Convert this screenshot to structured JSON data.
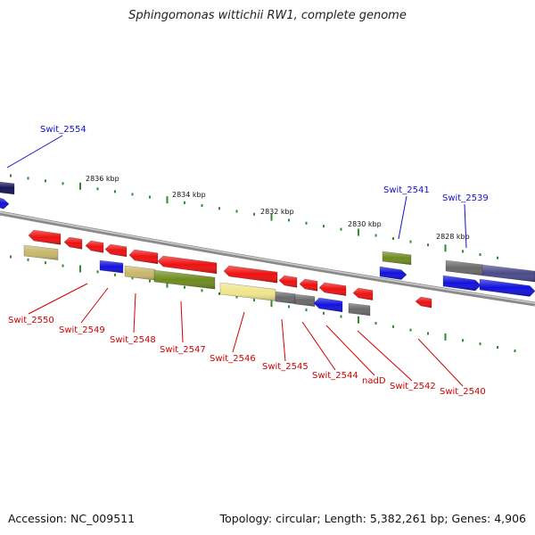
{
  "title": "Sphingomonas wittichii RW1, complete genome",
  "footer": {
    "accession": "Accession: NC_009511",
    "summary": "Topology: circular; Length: 5,382,261 bp; Genes: 4,906"
  },
  "colors": {
    "forward_label": "#1010c8",
    "reverse_label": "#d00000",
    "tick": "#2e8b2e",
    "backbone": "#888888",
    "red_gene": "#ee1111",
    "blue_gene": "#1111dd",
    "olive_gene": "#6e8b1e",
    "khaki_gene": "#c8b86a",
    "yellow_gene": "#f0e68c",
    "gray_gene": "#6a6a6a",
    "navy_gene": "#14145a",
    "slate_gene": "#4a4a8a"
  },
  "scale": {
    "ticks": [
      "2836 kbp",
      "2834 kbp",
      "2832 kbp",
      "2830 kbp",
      "2828 kbp"
    ]
  },
  "forward_labels": [
    "Swit_2554",
    "Swit_2541",
    "Swit_2539"
  ],
  "reverse_labels": [
    "Swit_2550",
    "Swit_2549",
    "Swit_2548",
    "Swit_2547",
    "Swit_2546",
    "Swit_2545",
    "Swit_2544",
    "nadD",
    "Swit_2542",
    "Swit_2540"
  ]
}
